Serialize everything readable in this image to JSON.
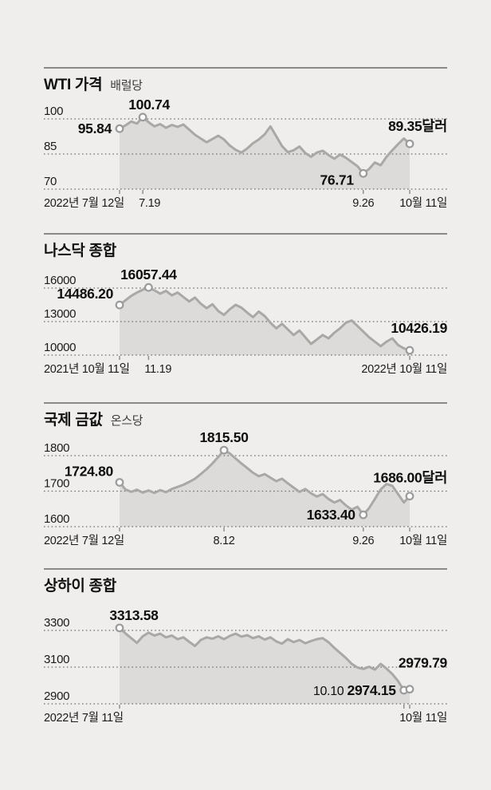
{
  "colors": {
    "background": "#efeeec",
    "rule": "#4d4d4d",
    "grid": "#6f6f6f",
    "area_fill": "#dcdbd9",
    "series_line": "#a9a8a5",
    "marker_fill": "#fdfdfd",
    "marker_stroke": "#9b9b9b",
    "tick": "#8a8a8a",
    "title_text": "#111111",
    "subtitle_text": "#3c3c3c",
    "axis_text": "#1b1b1b",
    "annotation_text": "#0e0e0e"
  },
  "chart_data": [
    {
      "id": "wti",
      "type": "area",
      "title": "WTI 가격",
      "subtitle": "배럴당",
      "unit": "달러",
      "yticks": [
        100,
        85,
        70
      ],
      "ylim": [
        70,
        104
      ],
      "grid": "dotted",
      "xticks": [
        {
          "t": 0,
          "label": "2022년 7월 12일"
        },
        {
          "t": 0.08,
          "label": "7.19"
        },
        {
          "t": 0.84,
          "label": "9.26"
        },
        {
          "t": 1,
          "label": "10월 11일"
        }
      ],
      "values": [
        95.84,
        97.2,
        98.9,
        98.0,
        100.74,
        98.6,
        96.8,
        97.8,
        96.2,
        97.4,
        96.6,
        97.6,
        95.4,
        93.2,
        91.6,
        90.0,
        91.4,
        92.8,
        91.2,
        88.6,
        86.8,
        85.6,
        87.4,
        89.6,
        91.2,
        93.4,
        96.8,
        92.6,
        88.4,
        85.8,
        86.6,
        88.2,
        85.4,
        83.8,
        85.6,
        86.4,
        84.6,
        83.0,
        84.8,
        83.4,
        81.6,
        79.8,
        76.71,
        78.6,
        81.4,
        80.2,
        83.8,
        86.6,
        89.2,
        91.6,
        89.35
      ],
      "annotations": [
        {
          "text": "95.84",
          "value": 95.84,
          "t": 0,
          "pos": "left"
        },
        {
          "text": "100.74",
          "value": 100.74,
          "t": 0.08,
          "pos": "above",
          "dx": 8
        },
        {
          "text": "76.71",
          "value": 76.71,
          "t": 0.84,
          "pos": "left-low"
        },
        {
          "text": "89.35달러",
          "value": 89.35,
          "t": 1,
          "pos": "end",
          "dy": -16
        }
      ]
    },
    {
      "id": "nasdaq",
      "type": "area",
      "title": "나스닥 종합",
      "subtitle": "",
      "unit": "",
      "yticks": [
        16000,
        13000,
        10000
      ],
      "ylim": [
        10000,
        16600
      ],
      "grid": "dotted",
      "xticks": [
        {
          "t": 0,
          "label": "2021년 10월 11일"
        },
        {
          "t": 0.1,
          "label": "11.19"
        },
        {
          "t": 1,
          "label": "2022년 10월 11일"
        }
      ],
      "values": [
        14486.2,
        14900,
        15300,
        15600,
        15850,
        16057.44,
        15800,
        15500,
        15750,
        15350,
        15600,
        15200,
        14800,
        15150,
        14600,
        14200,
        14550,
        13950,
        13600,
        14100,
        14500,
        14250,
        13800,
        13400,
        13900,
        13500,
        12900,
        12400,
        12800,
        12300,
        11800,
        12200,
        11600,
        11000,
        11400,
        11800,
        11500,
        12000,
        12400,
        12900,
        13100,
        12600,
        12100,
        11600,
        11200,
        10800,
        11200,
        11500,
        10900,
        10600,
        10426.19
      ],
      "annotations": [
        {
          "text": "14486.20",
          "value": 14486.2,
          "t": 0,
          "pos": "left-high"
        },
        {
          "text": "16057.44",
          "value": 16057.44,
          "t": 0.1,
          "pos": "above"
        },
        {
          "text": "10426.19",
          "value": 10426.19,
          "t": 1,
          "pos": "end",
          "dy": -22
        }
      ]
    },
    {
      "id": "gold",
      "type": "area",
      "title": "국제 금값",
      "subtitle": "온스당",
      "unit": "달러",
      "yticks": [
        1800,
        1700,
        1600
      ],
      "ylim": [
        1600,
        1830
      ],
      "grid": "dotted",
      "xticks": [
        {
          "t": 0,
          "label": "2022년 7월 12일"
        },
        {
          "t": 0.36,
          "label": "8.12"
        },
        {
          "t": 0.84,
          "label": "9.26"
        },
        {
          "t": 1,
          "label": "10월 11일"
        }
      ],
      "values": [
        1724.8,
        1705,
        1698,
        1704,
        1696,
        1702,
        1695,
        1703,
        1697,
        1706,
        1712,
        1718,
        1726,
        1735,
        1748,
        1762,
        1778,
        1796,
        1815.5,
        1806,
        1792,
        1778,
        1765,
        1752,
        1742,
        1748,
        1738,
        1728,
        1735,
        1722,
        1710,
        1698,
        1706,
        1694,
        1685,
        1692,
        1678,
        1668,
        1675,
        1660,
        1648,
        1656,
        1633.4,
        1652,
        1678,
        1705,
        1720,
        1715,
        1692,
        1668,
        1686.0
      ],
      "annotations": [
        {
          "text": "1724.80",
          "value": 1724.8,
          "t": 0,
          "pos": "left-high"
        },
        {
          "text": "1815.50",
          "value": 1815.5,
          "t": 0.36,
          "pos": "above"
        },
        {
          "text": "1633.40",
          "value": 1633.4,
          "t": 0.84,
          "pos": "left"
        },
        {
          "text": "1686.00달러",
          "value": 1686.0,
          "t": 1,
          "pos": "end",
          "dy": -17
        }
      ]
    },
    {
      "id": "shanghai",
      "type": "area",
      "title": "상하이 종합",
      "subtitle": "",
      "unit": "",
      "yticks": [
        3300,
        3100,
        2900
      ],
      "ylim": [
        2900,
        3360
      ],
      "grid": "dotted",
      "xticks": [
        {
          "t": 0,
          "label": "2022년 7월 11일"
        },
        {
          "t": 0.98,
          "label": ""
        },
        {
          "t": 1,
          "label": "10월 11일"
        }
      ],
      "values": [
        3313.58,
        3284,
        3258,
        3232,
        3268,
        3288,
        3272,
        3282,
        3262,
        3272,
        3252,
        3262,
        3238,
        3215,
        3248,
        3262,
        3255,
        3268,
        3252,
        3270,
        3282,
        3266,
        3274,
        3258,
        3268,
        3250,
        3262,
        3240,
        3228,
        3252,
        3236,
        3248,
        3230,
        3242,
        3252,
        3258,
        3236,
        3205,
        3178,
        3150,
        3118,
        3098,
        3090,
        3102,
        3086,
        3118,
        3092,
        3062,
        3024,
        2974.15,
        2979.79
      ],
      "annotations": [
        {
          "text": "3313.58",
          "value": 3313.58,
          "t": 0,
          "pos": "above",
          "dx": 18
        },
        {
          "text": "2974.15",
          "value": 2974.15,
          "t": 0.98,
          "pos": "left",
          "prefix": "10.10 "
        },
        {
          "text": "2979.79",
          "value": 2979.79,
          "t": 1,
          "pos": "end",
          "dy": -27
        }
      ]
    }
  ]
}
